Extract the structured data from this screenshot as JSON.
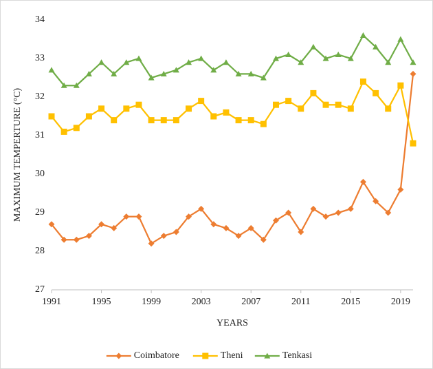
{
  "chart_data": {
    "type": "line",
    "y_label": "MAXIMUM TEMPERTURE (°C)",
    "x_label": "YEARS",
    "x": [
      1991,
      1992,
      1993,
      1994,
      1995,
      1996,
      1997,
      1998,
      1999,
      2000,
      2001,
      2002,
      2003,
      2004,
      2005,
      2006,
      2007,
      2008,
      2009,
      2010,
      2011,
      2012,
      2013,
      2014,
      2015,
      2016,
      2017,
      2018,
      2019,
      2020
    ],
    "series": [
      {
        "name": "Coimbatore",
        "color": "#ed7d31",
        "marker": "diamond",
        "values": [
          28.7,
          28.3,
          28.3,
          28.4,
          28.7,
          28.6,
          28.9,
          28.9,
          28.2,
          28.4,
          28.5,
          28.9,
          29.1,
          28.7,
          28.6,
          28.4,
          28.6,
          28.3,
          28.8,
          29.0,
          28.5,
          29.1,
          28.9,
          29.0,
          29.1,
          29.8,
          29.3,
          29.0,
          29.6,
          32.6
        ]
      },
      {
        "name": "Theni",
        "color": "#ffc000",
        "marker": "square",
        "values": [
          31.5,
          31.1,
          31.2,
          31.5,
          31.7,
          31.4,
          31.7,
          31.8,
          31.4,
          31.4,
          31.4,
          31.7,
          31.9,
          31.5,
          31.6,
          31.4,
          31.4,
          31.3,
          31.8,
          31.9,
          31.7,
          32.1,
          31.8,
          31.8,
          31.7,
          32.4,
          32.1,
          31.7,
          32.3,
          30.8
        ]
      },
      {
        "name": "Tenkasi",
        "color": "#70ad47",
        "marker": "triangle",
        "values": [
          32.7,
          32.3,
          32.3,
          32.6,
          32.9,
          32.6,
          32.9,
          33.0,
          32.5,
          32.6,
          32.7,
          32.9,
          33.0,
          32.7,
          32.9,
          32.6,
          32.6,
          32.5,
          33.0,
          33.1,
          32.9,
          33.3,
          33.0,
          33.1,
          33.0,
          33.6,
          33.3,
          32.9,
          33.5,
          32.9
        ]
      }
    ],
    "xlim": [
      1991,
      2020
    ],
    "xticks": [
      1991,
      1995,
      1999,
      2003,
      2007,
      2011,
      2015,
      2019
    ],
    "ylim": [
      27,
      34
    ],
    "yticks": [
      27,
      28,
      29,
      30,
      31,
      32,
      33,
      34
    ],
    "grid": false,
    "legend": "bottom"
  }
}
